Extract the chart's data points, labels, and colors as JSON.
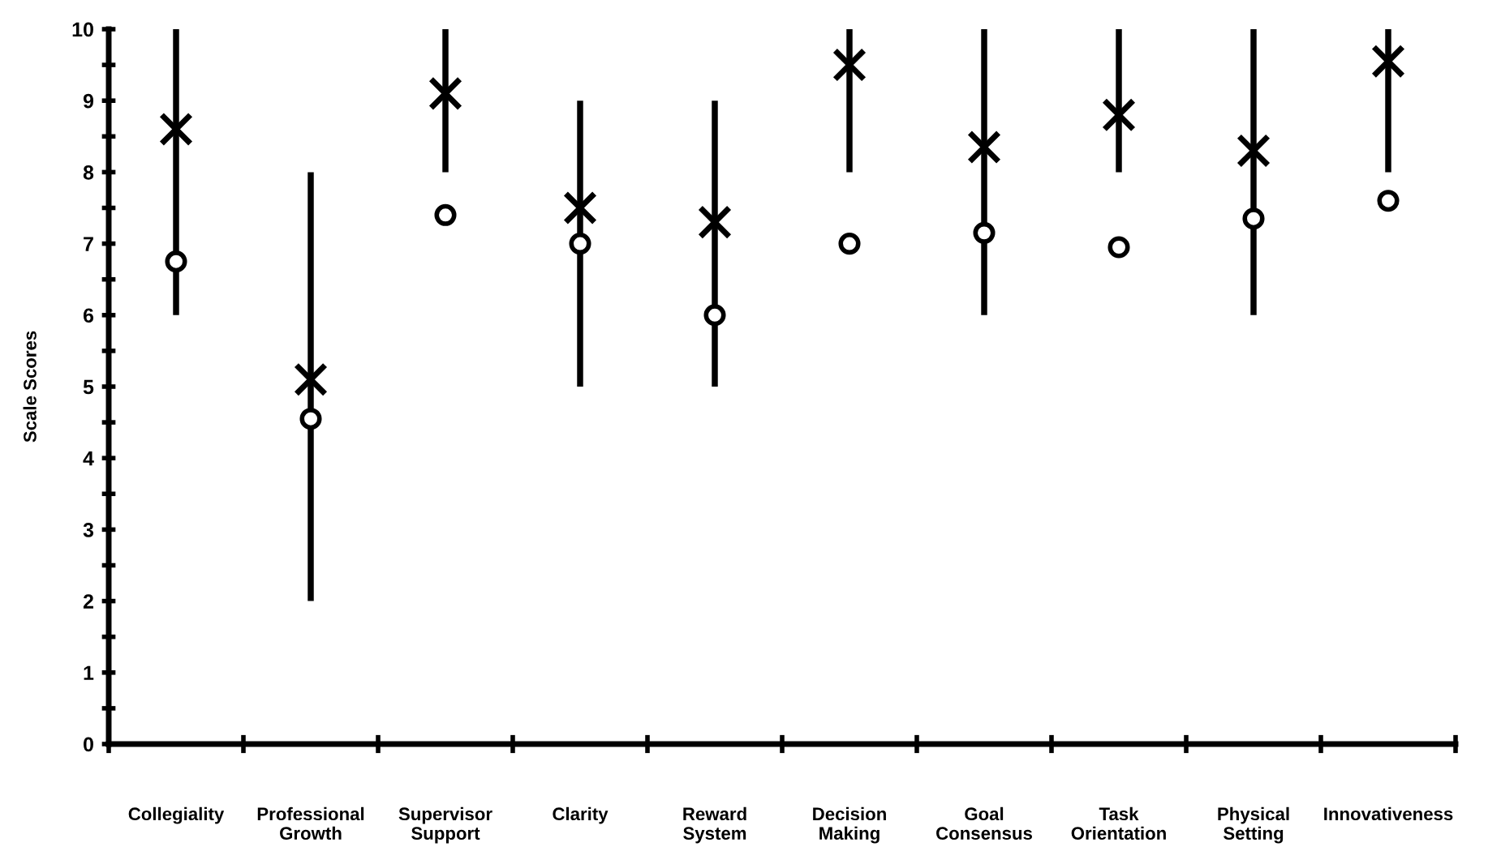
{
  "chart_data": {
    "type": "bar",
    "ylabel": "Scale Scores",
    "categories": [
      "Collegiality",
      "Professional\nGrowth",
      "Supervisor\nSupport",
      "Clarity",
      "Reward\nSystem",
      "Decision\nMaking",
      "Goal\nConsensus",
      "Task\nOrientation",
      "Physical\nSetting",
      "Innovativeness"
    ],
    "series": [
      {
        "color": "#000000",
        "base": [
          6,
          2,
          8,
          5,
          5,
          8,
          6,
          8,
          6,
          8
        ],
        "values": [
          4,
          6,
          2,
          4,
          4,
          2,
          4,
          2,
          4,
          2
        ]
      },
      {
        "type": "scatter",
        "marker": "cross",
        "color": "#000000",
        "values": [
          8.6,
          5.1,
          9.1,
          7.5,
          7.3,
          9.5,
          8.35,
          8.8,
          8.3,
          9.55
        ]
      },
      {
        "type": "scatter",
        "marker": "circle",
        "color": "#000000",
        "values": [
          6.75,
          4.55,
          7.4,
          7.0,
          6.0,
          7.0,
          7.15,
          6.95,
          7.35,
          7.6
        ]
      }
    ],
    "ylim": [
      0,
      10
    ],
    "yticks": [
      0,
      {
        "value": 0.5,
        "label": null
      },
      1,
      {
        "value": 1.5,
        "label": null
      },
      2,
      {
        "value": 2.5,
        "label": null
      },
      3,
      {
        "value": 3.5,
        "label": null
      },
      4,
      {
        "value": 4.5,
        "label": null
      },
      5,
      {
        "value": 5.5,
        "label": null
      },
      6,
      {
        "value": 6.5,
        "label": null
      },
      7,
      {
        "value": 7.5,
        "label": null
      },
      8,
      {
        "value": 8.5,
        "label": null
      },
      9,
      {
        "value": 9.5,
        "label": null
      },
      10
    ],
    "grid": false,
    "legend": false
  }
}
